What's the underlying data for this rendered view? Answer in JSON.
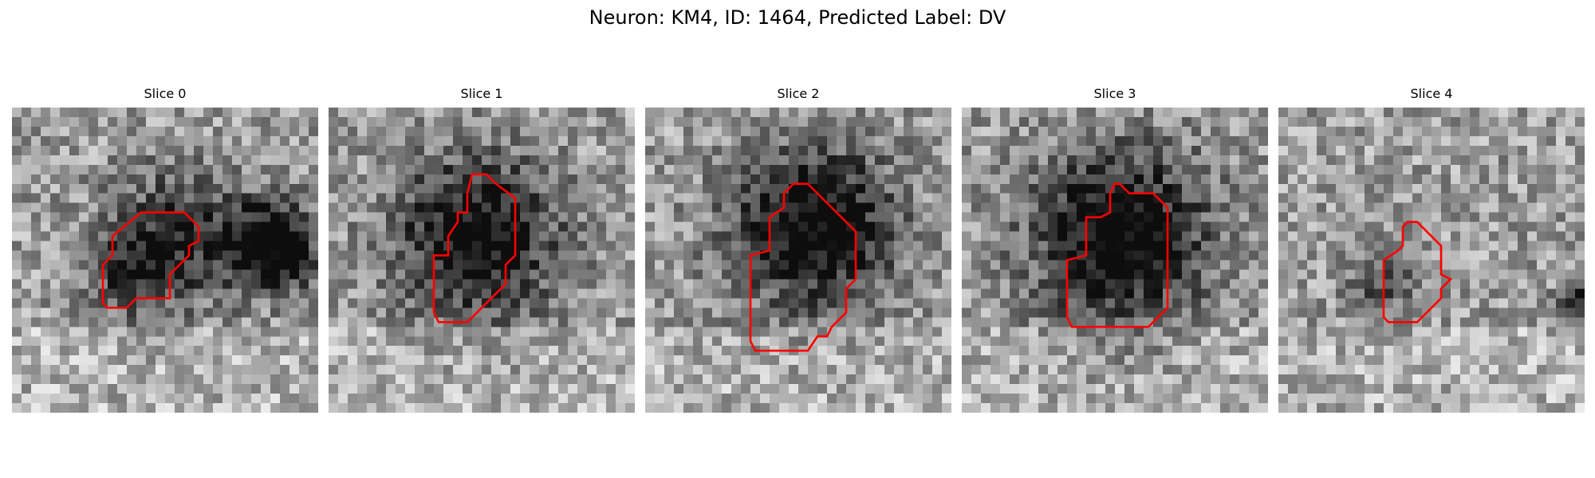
{
  "figure": {
    "title": "Neuron: KM4, ID: 1464, Predicted Label: DV",
    "contour_color": "#ff0000"
  },
  "slices": [
    {
      "label": "Slice 0"
    },
    {
      "label": "Slice 1"
    },
    {
      "label": "Slice 2"
    },
    {
      "label": "Slice 3"
    },
    {
      "label": "Slice 4"
    }
  ]
}
